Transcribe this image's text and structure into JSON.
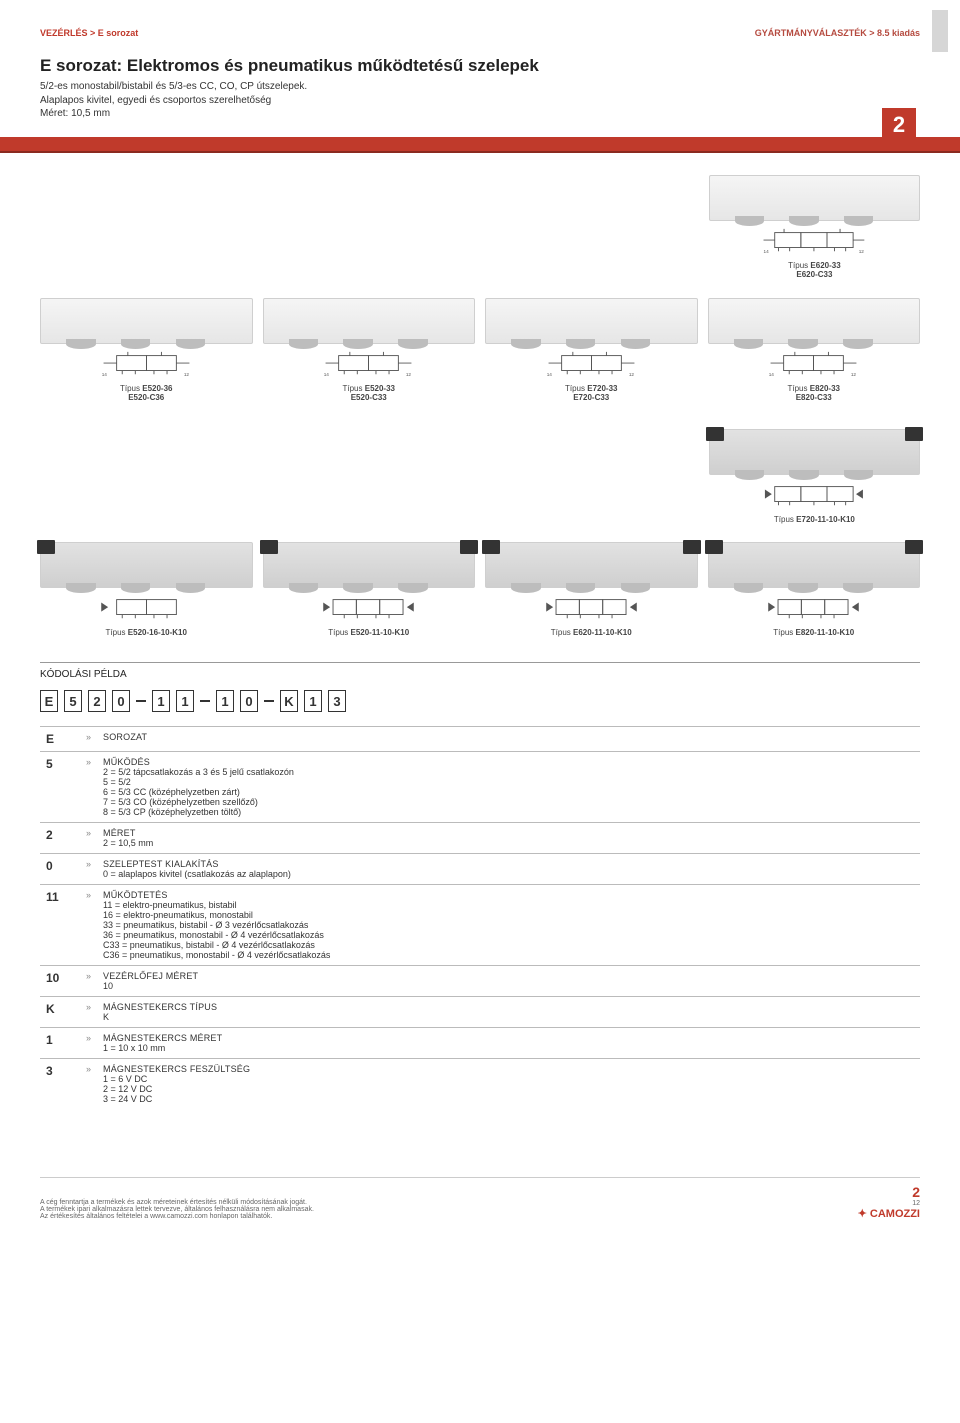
{
  "header": {
    "left": "VEZÉRLÉS > E sorozat",
    "right": "GYÁRTMÁNYVÁLASZTÉK > 8.5 kiadás"
  },
  "title": "E sorozat: Elektromos és pneumatikus működtetésű szelepek",
  "subtitle1": "5/2-es monostabil/bistabil és 5/3-es CC, CO, CP útszelepek.",
  "subtitle2": "Alaplapos kivitel, egyedi és csoportos szerelhetőség",
  "subtitle3": "Méret: 10,5 mm",
  "badge": "2",
  "tipus": "Típus",
  "rowA": [
    {
      "l1": "E620-33",
      "l2": "E620-C33"
    }
  ],
  "rowB": [
    {
      "l1": "E520-36",
      "l2": "E520-C36"
    },
    {
      "l1": "E520-33",
      "l2": "E520-C33"
    },
    {
      "l1": "E720-33",
      "l2": "E720-C33"
    },
    {
      "l1": "E820-33",
      "l2": "E820-C33"
    }
  ],
  "rowC": [
    {
      "l1": "E720-11-10-K10",
      "l2": ""
    }
  ],
  "rowD": [
    {
      "l1": "E520-16-10-K10"
    },
    {
      "l1": "E520-11-10-K10"
    },
    {
      "l1": "E620-11-10-K10"
    },
    {
      "l1": "E820-11-10-K10"
    }
  ],
  "ktitle": "KÓDOLÁSI PÉLDA",
  "code": [
    "E",
    "5",
    "2",
    "0",
    "–",
    "1",
    "1",
    "–",
    "1",
    "0",
    "–",
    "K",
    "1",
    "3"
  ],
  "spec": [
    {
      "k": "E",
      "h": "SOROZAT",
      "b": ""
    },
    {
      "k": "5",
      "h": "MŰKÖDÉS",
      "b": "2 = 5/2 tápcsatlakozás a 3 és 5 jelű csatlakozón\n5 = 5/2\n6 = 5/3 CC (középhelyzetben zárt)\n7 = 5/3 CO (középhelyzetben szellőző)\n8 = 5/3 CP (középhelyzetben töltő)"
    },
    {
      "k": "2",
      "h": "MÉRET",
      "b": "2 = 10,5 mm"
    },
    {
      "k": "0",
      "h": "SZELEPTEST KIALAKÍTÁS",
      "b": "0 = alaplapos kivitel (csatlakozás az alaplapon)"
    },
    {
      "k": "11",
      "h": "MŰKÖDTETÉS",
      "b": "11 = elektro-pneumatikus, bistabil\n16 = elektro-pneumatikus, monostabil\n33 = pneumatikus, bistabil - Ø 3 vezérlőcsatlakozás\n36 = pneumatikus, monostabil - Ø 4 vezérlőcsatlakozás\nC33 = pneumatikus, bistabil - Ø 4 vezérlőcsatlakozás\nC36 = pneumatikus, monostabil - Ø 4 vezérlőcsatlakozás"
    },
    {
      "k": "10",
      "h": "VEZÉRLŐFEJ MÉRET",
      "b": "10"
    },
    {
      "k": "K",
      "h": "MÁGNESTEKERCS TÍPUS",
      "b": "K"
    },
    {
      "k": "1",
      "h": "MÁGNESTEKERCS MÉRET",
      "b": "1 = 10 x 10 mm"
    },
    {
      "k": "3",
      "h": "MÁGNESTEKERCS FESZÜLTSÉG",
      "b": "1 =   6 V DC\n2 = 12 V DC\n3 = 24 V DC"
    }
  ],
  "foot": {
    "l1": "A cég fenntartja a termékek és azok méreteinek értesítés nélküli módosításának jogát.",
    "l2": "A termékek ipari alkalmazásra lettek tervezve, általános felhasználásra nem alkalmasak.",
    "l3": "Az értékesítés általános feltételei a www.camozzi.com honlapon találhatók.",
    "pg_top": "2",
    "pg_bot": "12",
    "brand": "CAMOZZI"
  },
  "colors": {
    "brand": "#c03a2b",
    "grey": "#bdbdbd",
    "line": "#666"
  }
}
